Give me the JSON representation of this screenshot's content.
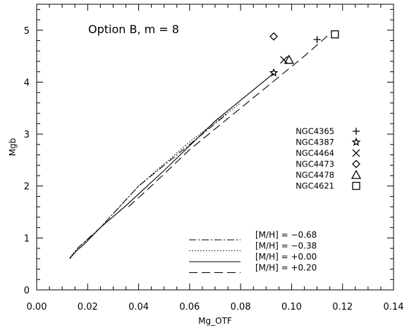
{
  "chart_data": {
    "type": "scatter",
    "annotation": "Option B, m = 8",
    "xlabel": "Mg_OTF",
    "ylabel": "Mgb",
    "xlim": [
      0.0,
      0.14
    ],
    "ylim": [
      0,
      5.5
    ],
    "xticks": [
      "0.00",
      "0.02",
      "0.04",
      "0.06",
      "0.08",
      "0.10",
      "0.12",
      "0.14"
    ],
    "yticks": [
      "0",
      "1",
      "2",
      "3",
      "4",
      "5"
    ],
    "grid": false,
    "lines": [
      {
        "name": "[M/H] = −0.68",
        "style": "dashdot",
        "points": [
          [
            0.013,
            0.6
          ],
          [
            0.016,
            0.8
          ],
          [
            0.025,
            1.2
          ],
          [
            0.04,
            2.0
          ],
          [
            0.06,
            2.8
          ],
          [
            0.075,
            3.4
          ]
        ]
      },
      {
        "name": "[M/H] = −0.38",
        "style": "dotted",
        "points": [
          [
            0.013,
            0.62
          ],
          [
            0.016,
            0.8
          ],
          [
            0.025,
            1.2
          ],
          [
            0.04,
            2.0
          ],
          [
            0.06,
            2.85
          ],
          [
            0.08,
            3.6
          ]
        ]
      },
      {
        "name": "[M/H] = +0.00",
        "style": "solid",
        "points": [
          [
            0.013,
            0.61
          ],
          [
            0.016,
            0.77
          ],
          [
            0.018,
            0.85
          ],
          [
            0.025,
            1.2
          ],
          [
            0.035,
            1.62
          ],
          [
            0.05,
            2.3
          ],
          [
            0.07,
            3.25
          ],
          [
            0.093,
            4.17
          ]
        ]
      },
      {
        "name": "[M/H] = +0.20",
        "style": "dashed",
        "points": [
          [
            0.036,
            1.6
          ],
          [
            0.045,
            2.0
          ],
          [
            0.06,
            2.7
          ],
          [
            0.08,
            3.5
          ],
          [
            0.095,
            4.1
          ],
          [
            0.105,
            4.5
          ],
          [
            0.115,
            4.93
          ]
        ]
      }
    ],
    "points": [
      {
        "name": "NGC4365",
        "marker": "plus",
        "x": 0.11,
        "y": 4.82
      },
      {
        "name": "NGC4387",
        "marker": "star",
        "x": 0.093,
        "y": 4.18
      },
      {
        "name": "NGC4464",
        "marker": "cross",
        "x": 0.097,
        "y": 4.43
      },
      {
        "name": "NGC4473",
        "marker": "diamond",
        "x": 0.093,
        "y": 4.88
      },
      {
        "name": "NGC4478",
        "marker": "triangle",
        "x": 0.099,
        "y": 4.43
      },
      {
        "name": "NGC4621",
        "marker": "square",
        "x": 0.117,
        "y": 4.92
      }
    ],
    "legend_points_placement": "right-middle",
    "legend_lines_placement": "bottom-right"
  }
}
